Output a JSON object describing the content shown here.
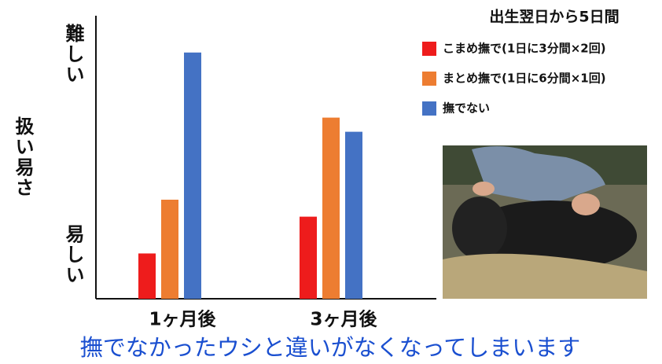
{
  "chart_data": {
    "type": "bar",
    "legend_title": "出生翌日から5日間",
    "y_label": "扱い易さ",
    "y_top_label": "難しい",
    "y_bottom_label": "易しい",
    "caption": "撫でなかったウシと違いがなくなってしまいます",
    "categories": [
      "1ヶ月後",
      "3ヶ月後"
    ],
    "series": [
      {
        "name": "こまめ撫で(1日に3分間×2回)",
        "color": "#ee1c1c",
        "values": [
          16,
          29
        ]
      },
      {
        "name": "まとめ撫で(1日に6分間×1回)",
        "color": "#ed7d31",
        "values": [
          35,
          64
        ]
      },
      {
        "name": "撫でない",
        "color": "#4472c4",
        "values": [
          87,
          59
        ]
      }
    ],
    "ylim": [
      0,
      100
    ]
  }
}
